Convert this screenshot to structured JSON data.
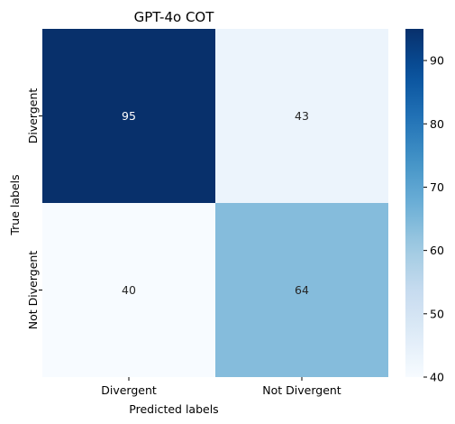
{
  "chart_data": {
    "type": "heatmap",
    "title": "GPT-4o COT",
    "xlabel": "Predicted labels",
    "ylabel": "True labels",
    "x_categories": [
      "Divergent",
      "Not Divergent"
    ],
    "y_categories": [
      "Divergent",
      "Not Divergent"
    ],
    "values": [
      [
        95,
        43
      ],
      [
        40,
        64
      ]
    ],
    "colorbar": {
      "min": 40,
      "max": 95,
      "ticks": [
        40,
        50,
        60,
        70,
        80,
        90
      ]
    },
    "colormap": "Blues",
    "colors": {
      "light": "#f7fbff",
      "dark": "#08306b",
      "text_dark": "#262626",
      "text_light": "#ffffff"
    }
  }
}
